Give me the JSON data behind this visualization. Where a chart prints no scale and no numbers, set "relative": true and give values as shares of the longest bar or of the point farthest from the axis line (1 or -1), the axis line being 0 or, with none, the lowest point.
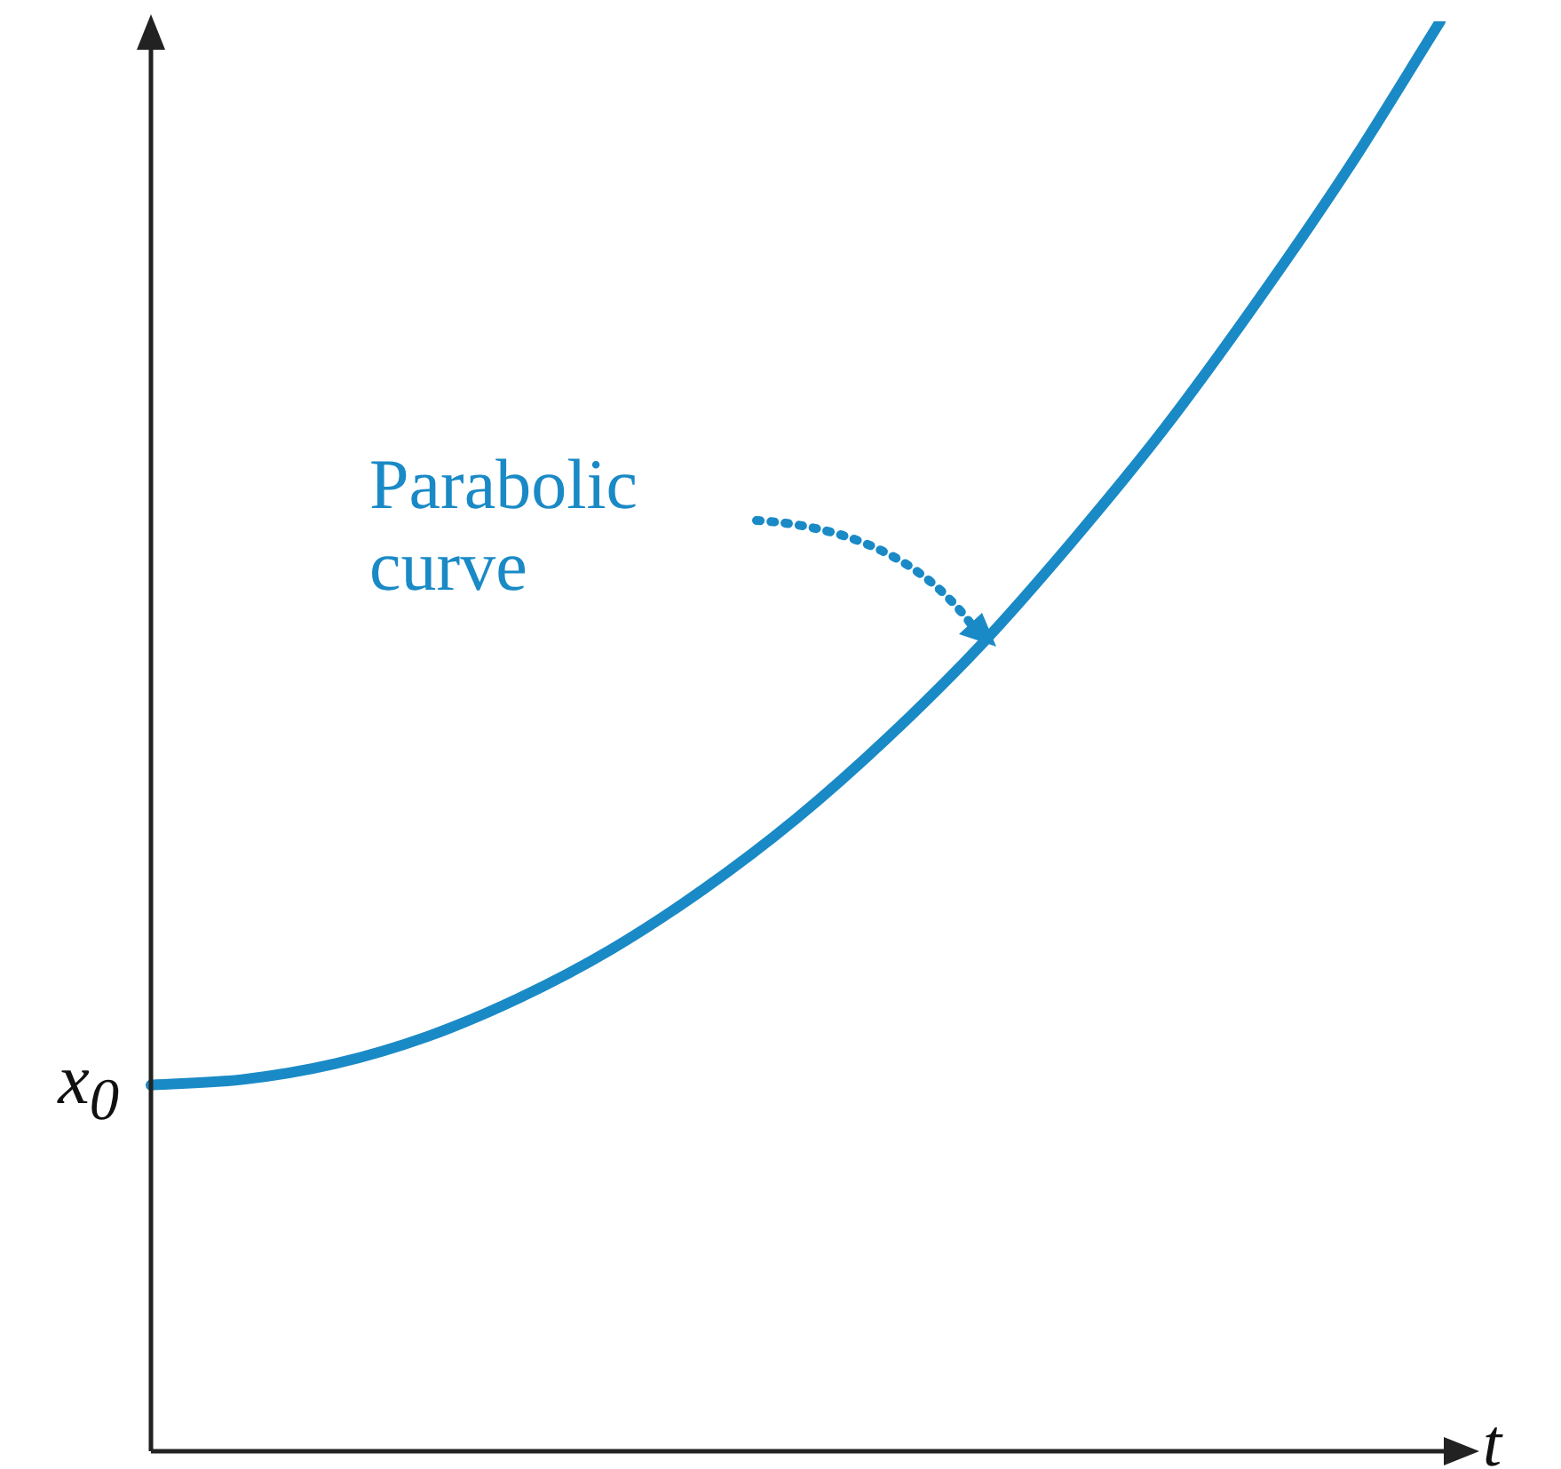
{
  "chart_data": {
    "type": "line",
    "relative": true,
    "xlabel": "t",
    "color": "#1a8ac6",
    "marker": "none",
    "legend": false,
    "categories": [
      null,
      null,
      null,
      null,
      null,
      null,
      null,
      null,
      null,
      null,
      null,
      null,
      null,
      null,
      null
    ],
    "values": [
      0.256,
      0.26,
      0.271,
      0.29,
      0.317,
      0.351,
      0.393,
      0.442,
      0.499,
      0.563,
      0.636,
      0.715,
      0.803,
      0.897,
      1.0
    ],
    "annotations": [
      "Parabolic curve",
      "x$_{0}$"
    ]
  }
}
